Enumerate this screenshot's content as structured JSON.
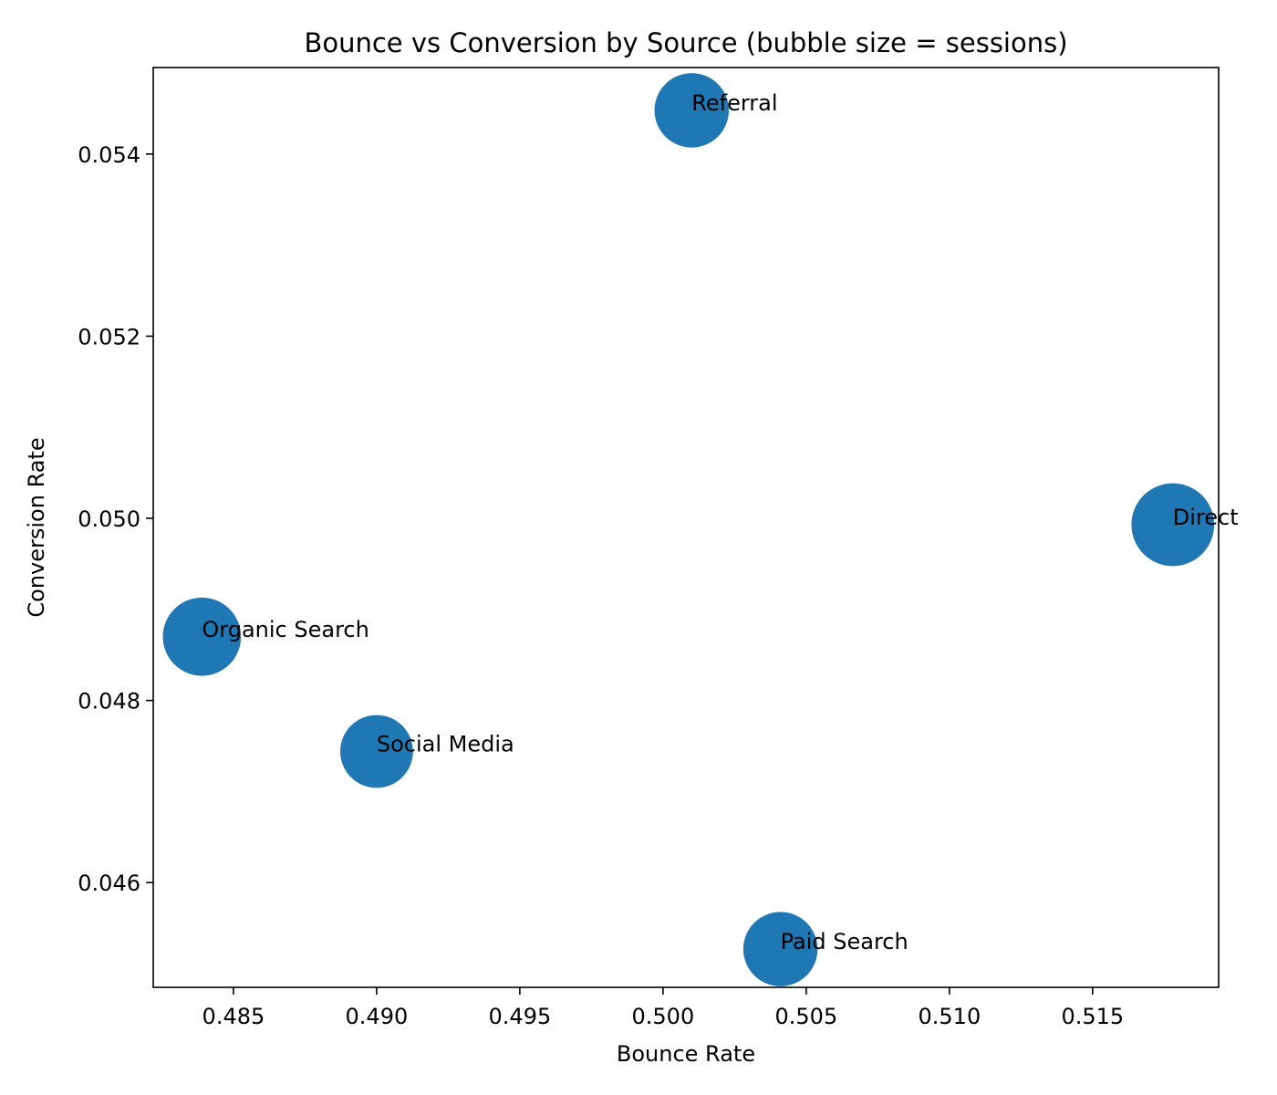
{
  "chart_data": {
    "type": "scatter",
    "title": "Bounce vs Conversion by Source (bubble size = sessions)",
    "xlabel": "Bounce Rate",
    "ylabel": "Conversion Rate",
    "xlim": [
      0.4822,
      0.5194
    ],
    "ylim": [
      0.04485,
      0.05495
    ],
    "xticks": [
      "0.485",
      "0.490",
      "0.495",
      "0.500",
      "0.505",
      "0.510",
      "0.515"
    ],
    "yticks": [
      "0.046",
      "0.048",
      "0.050",
      "0.052",
      "0.054"
    ],
    "grid": false,
    "marker_color": "#1f77b4",
    "points": [
      {
        "label": "Organic Search",
        "x": 0.4839,
        "y": 0.0487,
        "size": 1.02
      },
      {
        "label": "Social Media",
        "x": 0.49,
        "y": 0.04744,
        "size": 0.95
      },
      {
        "label": "Referral",
        "x": 0.501,
        "y": 0.05448,
        "size": 0.97
      },
      {
        "label": "Paid Search",
        "x": 0.5041,
        "y": 0.04527,
        "size": 0.97
      },
      {
        "label": "Direct",
        "x": 0.5178,
        "y": 0.04993,
        "size": 1.08
      }
    ]
  }
}
